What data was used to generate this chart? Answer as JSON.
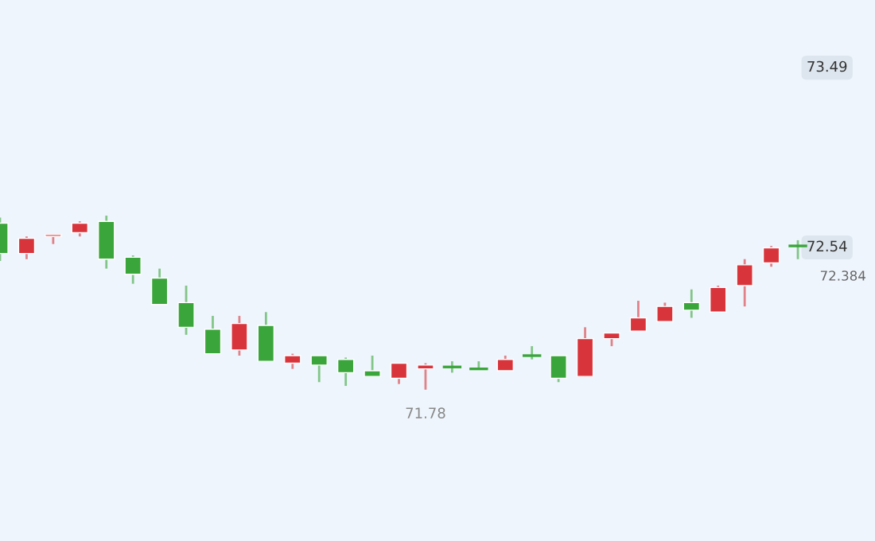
{
  "chart_data": {
    "type": "candlestick",
    "categories": [
      null,
      null,
      null,
      null,
      null,
      null,
      null,
      null,
      null,
      null,
      null,
      null,
      null,
      null,
      null,
      null,
      null,
      null,
      null,
      null,
      null,
      null,
      null,
      null,
      null,
      null,
      null,
      null,
      null,
      null,
      null
    ],
    "ohlc": [
      [
        72.66,
        72.69,
        72.46,
        72.5
      ],
      [
        72.5,
        72.59,
        72.47,
        72.58
      ],
      [
        72.59,
        72.6,
        72.55,
        72.6
      ],
      [
        72.61,
        72.67,
        72.59,
        72.66
      ],
      [
        72.67,
        72.7,
        72.42,
        72.47
      ],
      [
        72.48,
        72.49,
        72.34,
        72.39
      ],
      [
        72.37,
        72.42,
        72.23,
        72.23
      ],
      [
        72.24,
        72.33,
        72.07,
        72.11
      ],
      [
        72.1,
        72.17,
        71.97,
        71.97
      ],
      [
        71.99,
        72.17,
        71.96,
        72.13
      ],
      [
        72.12,
        72.19,
        71.93,
        71.93
      ],
      [
        71.92,
        71.97,
        71.89,
        71.96
      ],
      [
        71.96,
        71.96,
        71.82,
        71.91
      ],
      [
        71.94,
        71.95,
        71.8,
        71.87
      ],
      [
        71.88,
        71.96,
        71.85,
        71.85
      ],
      [
        71.84,
        71.92,
        71.81,
        71.92
      ],
      [
        71.89,
        71.92,
        71.78,
        71.91
      ],
      [
        71.9,
        71.93,
        71.87,
        71.9
      ],
      [
        71.89,
        71.93,
        71.89,
        71.89
      ],
      [
        71.88,
        71.96,
        71.88,
        71.94
      ],
      [
        71.96,
        72.01,
        71.94,
        71.96
      ],
      [
        71.96,
        71.96,
        71.82,
        71.84
      ],
      [
        71.85,
        72.11,
        71.85,
        72.05
      ],
      [
        72.05,
        72.08,
        72.01,
        72.08
      ],
      [
        72.09,
        72.25,
        72.09,
        72.16
      ],
      [
        72.14,
        72.24,
        72.14,
        72.22
      ],
      [
        72.24,
        72.31,
        72.16,
        72.2
      ],
      [
        72.19,
        72.33,
        72.19,
        72.32
      ],
      [
        72.33,
        72.47,
        72.22,
        72.44
      ],
      [
        72.45,
        72.54,
        72.43,
        72.53
      ],
      [
        72.54,
        72.57,
        72.47,
        72.54
      ]
    ],
    "colors": [
      "#3aa53a",
      "#d8343c",
      "#d8343c",
      "#d8343c",
      "#3aa53a",
      "#3aa53a",
      "#3aa53a",
      "#3aa53a",
      "#3aa53a",
      "#d8343c",
      "#3aa53a",
      "#d8343c",
      "#3aa53a",
      "#3aa53a",
      "#3aa53a",
      "#d8343c",
      "#d8343c",
      "#3aa53a",
      "#3aa53a",
      "#d8343c",
      "#3aa53a",
      "#3aa53a",
      "#d8343c",
      "#d8343c",
      "#d8343c",
      "#d8343c",
      "#3aa53a",
      "#d8343c",
      "#d8343c",
      "#d8343c",
      "#3aa53a"
    ],
    "ylim": [
      70.98,
      73.84
    ],
    "yticks": [
      73.49,
      72.54
    ],
    "annotations": [
      {
        "text": "71.78",
        "y": 71.78
      },
      "72.384"
    ],
    "tick_labels": "y"
  }
}
